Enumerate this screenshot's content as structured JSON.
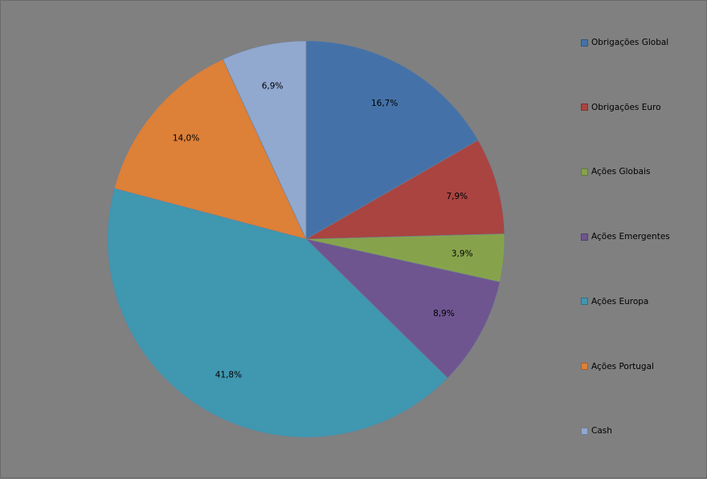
{
  "chart_data": {
    "type": "pie",
    "title": "",
    "legend_position": "right",
    "slices": [
      {
        "label": "Obrigações Global",
        "value": 16.7,
        "display": "16,7%",
        "color": "#4472a8"
      },
      {
        "label": "Obrigações Euro",
        "value": 7.9,
        "display": "7,9%",
        "color": "#a94441"
      },
      {
        "label": "Ações Globais",
        "value": 3.9,
        "display": "3,9%",
        "color": "#86a34c"
      },
      {
        "label": "Ações Emergentes",
        "value": 8.9,
        "display": "8,9%",
        "color": "#6e5590"
      },
      {
        "label": "Ações Europa",
        "value": 41.8,
        "display": "41,8%",
        "color": "#3f97b0"
      },
      {
        "label": "Ações Portugal",
        "value": 14.0,
        "display": "14,0%",
        "color": "#dd8038"
      },
      {
        "label": "Cash",
        "value": 6.9,
        "display": "6,9%",
        "color": "#91a8cf"
      }
    ]
  }
}
